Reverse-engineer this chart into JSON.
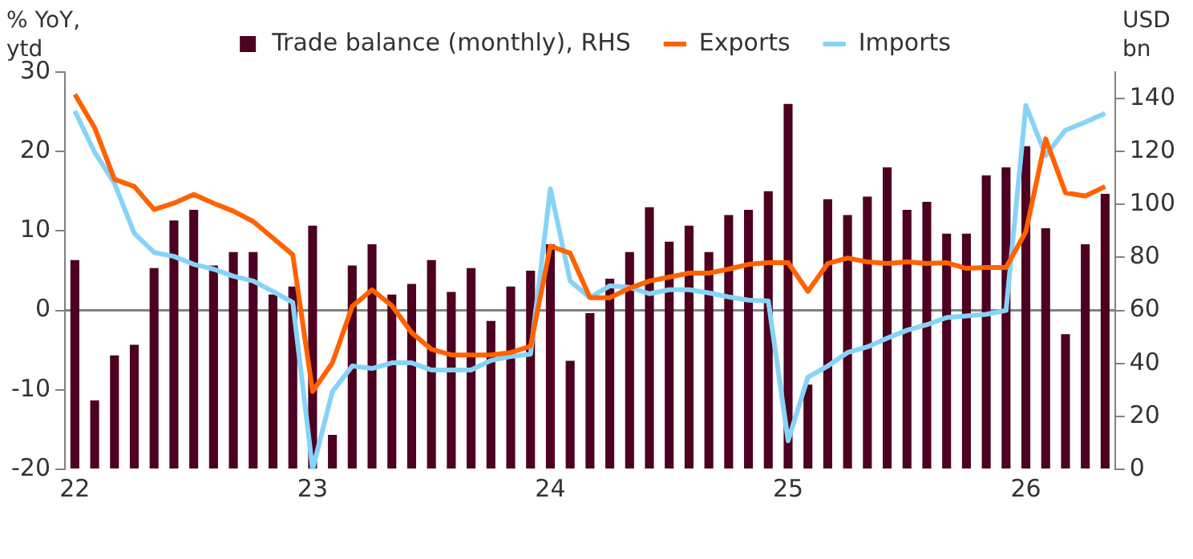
{
  "chart_data": {
    "type": "bar",
    "categories": [
      "22",
      null,
      null,
      null,
      null,
      null,
      null,
      null,
      null,
      null,
      null,
      null,
      "23",
      null,
      null,
      null,
      null,
      null,
      null,
      null,
      null,
      null,
      null,
      null,
      "24",
      null,
      null,
      null,
      null,
      null,
      null,
      null,
      null,
      null,
      null,
      null,
      "25",
      null,
      null,
      null,
      null,
      null,
      null,
      null,
      null,
      null,
      null,
      null,
      "26",
      null,
      null,
      null,
      null
    ],
    "series": [
      {
        "name": "Trade balance (monthly), RHS",
        "axis": "y2",
        "color": "#4d0020",
        "values": [
          79,
          26,
          43,
          47,
          76,
          94,
          98,
          77,
          82,
          82,
          66,
          69,
          92,
          13,
          77,
          85,
          66,
          70,
          79,
          67,
          76,
          56,
          69,
          75,
          85,
          41,
          59,
          72,
          82,
          99,
          86,
          92,
          82,
          96,
          98,
          105,
          138,
          32,
          102,
          96,
          103,
          114,
          98,
          101,
          89,
          89,
          111,
          114,
          122,
          91,
          51,
          85,
          104
        ]
      },
      {
        "name": "Exports",
        "type": "line",
        "color": "#ff6200",
        "values": [
          27.2,
          23,
          16.5,
          15.6,
          12.7,
          13.5,
          14.6,
          13.5,
          12.5,
          11.2,
          9.1,
          7,
          -10.2,
          -6.6,
          0.5,
          2.6,
          0.6,
          -2.8,
          -4.9,
          -5.6,
          -5.6,
          -5.6,
          -5.3,
          -4.5,
          8.1,
          7.2,
          1.6,
          1.6,
          2.8,
          3.7,
          4.2,
          4.7,
          4.7,
          5.2,
          5.8,
          6,
          6,
          2.4,
          5.9,
          6.6,
          6.1,
          5.9,
          6.1,
          5.9,
          6,
          5.3,
          5.4,
          5.4,
          9.9,
          21.6,
          14.8,
          14.4,
          15.6
        ]
      },
      {
        "name": "Imports",
        "type": "line",
        "color": "#87d3f8",
        "values": [
          25.1,
          19.9,
          16,
          9.7,
          7.3,
          6.8,
          5.8,
          5.2,
          4.3,
          3.7,
          2.4,
          1,
          -20,
          -10.2,
          -7,
          -7.3,
          -6.6,
          -6.6,
          -7.5,
          -7.5,
          -7.5,
          -6.3,
          -5.8,
          -5.5,
          15.3,
          3.7,
          1.6,
          3.1,
          2.9,
          2.1,
          2.6,
          2.6,
          2.2,
          1.7,
          1.3,
          1.2,
          -16.4,
          -8.4,
          -7,
          -5.3,
          -4.6,
          -3.5,
          -2.5,
          -1.8,
          -0.9,
          -0.7,
          -0.5,
          0,
          25.8,
          19.5,
          22.7,
          23.7,
          24.8
        ]
      }
    ],
    "ylabel": "% YoY, ytd",
    "y2label": "USD bn",
    "ylim": [
      -20,
      30
    ],
    "yticks": [
      -20,
      -10,
      0,
      10,
      20,
      30
    ],
    "y2lim": [
      0,
      150
    ],
    "y2ticks": [
      0,
      20,
      40,
      60,
      80,
      100,
      120,
      140
    ],
    "ref_lines": [
      {
        "axis": "y",
        "value": 0,
        "color": "#808080"
      }
    ],
    "legend": "top",
    "grid": false,
    "line_style": "solid",
    "marker": "none"
  }
}
